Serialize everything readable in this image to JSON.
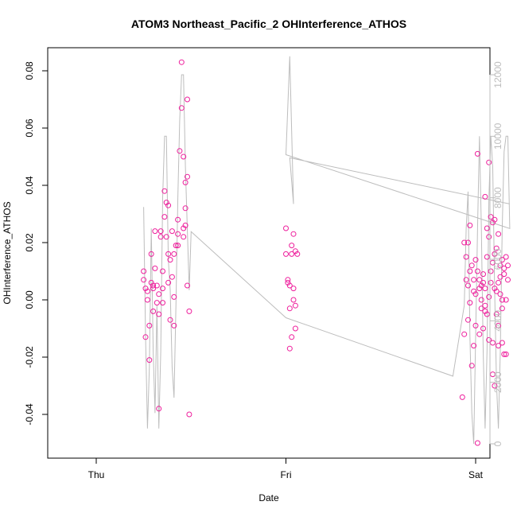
{
  "chart_data": {
    "type": "scatter",
    "title": "ATOM3 Northeast_Pacific_2 OHInterference_ATHOS",
    "xlabel": "Date",
    "ylabel": "OHInterference_ATHOS",
    "x_ticks": [
      "Thu",
      "Fri",
      "Sat"
    ],
    "y_ticks": [
      "-0.04",
      "-0.02",
      "0.00",
      "0.02",
      "0.04",
      "0.06",
      "0.08"
    ],
    "y_ticks_right": [
      "0",
      "2000",
      "4000",
      "6000",
      "8000",
      "10000",
      "12000"
    ],
    "ylim": [
      -0.05,
      0.085
    ],
    "ylim_right": [
      0,
      12500
    ],
    "grid": false,
    "colors": {
      "points": "#ee1e9c",
      "altitude": "#bdbdbd",
      "axis": "#000000",
      "right_axis": "#bdbdbd"
    },
    "series": [
      {
        "axis": "left",
        "style": "points",
        "points": [
          [
            0.25,
            0.01
          ],
          [
            0.25,
            0.007
          ],
          [
            0.26,
            0.004
          ],
          [
            0.26,
            -0.013
          ],
          [
            0.27,
            0.003
          ],
          [
            0.27,
            0.0
          ],
          [
            0.28,
            -0.009
          ],
          [
            0.28,
            -0.021
          ],
          [
            0.29,
            0.006
          ],
          [
            0.29,
            0.016
          ],
          [
            0.3,
            0.004
          ],
          [
            0.3,
            -0.004
          ],
          [
            0.31,
            0.024
          ],
          [
            0.31,
            0.011
          ],
          [
            0.32,
            0.005
          ],
          [
            0.32,
            -0.001
          ],
          [
            0.33,
            -0.038
          ],
          [
            0.33,
            0.002
          ],
          [
            0.34,
            0.022
          ],
          [
            0.34,
            0.024
          ],
          [
            0.35,
            0.004
          ],
          [
            0.35,
            -0.001
          ],
          [
            0.36,
            0.029
          ],
          [
            0.36,
            0.038
          ],
          [
            0.37,
            0.034
          ],
          [
            0.37,
            0.022
          ],
          [
            0.38,
            0.016
          ],
          [
            0.38,
            0.006
          ],
          [
            0.39,
            0.014
          ],
          [
            0.39,
            -0.007
          ],
          [
            0.4,
            0.024
          ],
          [
            0.4,
            0.008
          ],
          [
            0.41,
            0.001
          ],
          [
            0.41,
            -0.009
          ],
          [
            0.42,
            0.019
          ],
          [
            0.43,
            0.023
          ],
          [
            0.43,
            0.028
          ],
          [
            0.44,
            0.052
          ],
          [
            0.45,
            0.067
          ],
          [
            0.45,
            0.083
          ],
          [
            0.46,
            0.025
          ],
          [
            0.46,
            0.05
          ],
          [
            0.47,
            0.032
          ],
          [
            0.47,
            0.041
          ],
          [
            0.48,
            0.043
          ],
          [
            0.48,
            0.07
          ],
          [
            0.49,
            -0.004
          ],
          [
            0.49,
            -0.04
          ],
          [
            0.46,
            0.022
          ],
          [
            0.43,
            0.019
          ],
          [
            0.41,
            0.016
          ],
          [
            0.38,
            0.033
          ],
          [
            0.35,
            0.01
          ],
          [
            0.3,
            0.005
          ],
          [
            0.33,
            -0.005
          ],
          [
            0.47,
            0.026
          ],
          [
            0.48,
            0.005
          ],
          [
            1.0,
            0.025
          ],
          [
            1.0,
            0.016
          ],
          [
            1.01,
            0.007
          ],
          [
            1.01,
            0.006
          ],
          [
            1.02,
            -0.003
          ],
          [
            1.02,
            0.005
          ],
          [
            1.02,
            -0.017
          ],
          [
            1.03,
            0.019
          ],
          [
            1.03,
            -0.013
          ],
          [
            1.03,
            0.016
          ],
          [
            1.04,
            0.023
          ],
          [
            1.04,
            0.0
          ],
          [
            1.04,
            0.004
          ],
          [
            1.05,
            0.017
          ],
          [
            1.05,
            -0.002
          ],
          [
            1.05,
            -0.01
          ],
          [
            1.06,
            0.016
          ],
          [
            1.93,
            -0.034
          ],
          [
            1.94,
            -0.012
          ],
          [
            1.94,
            0.02
          ],
          [
            1.95,
            0.007
          ],
          [
            1.95,
            0.015
          ],
          [
            1.96,
            0.02
          ],
          [
            1.96,
            -0.007
          ],
          [
            1.97,
            0.026
          ],
          [
            1.97,
            0.01
          ],
          [
            1.98,
            -0.023
          ],
          [
            1.98,
            0.012
          ],
          [
            1.99,
            0.003
          ],
          [
            1.99,
            0.007
          ],
          [
            2.0,
            -0.009
          ],
          [
            2.0,
            0.014
          ],
          [
            2.01,
            -0.05
          ],
          [
            2.01,
            0.051
          ],
          [
            2.02,
            0.007
          ],
          [
            2.02,
            -0.012
          ],
          [
            2.03,
            0.0
          ],
          [
            2.03,
            -0.003
          ],
          [
            2.04,
            0.006
          ],
          [
            2.04,
            -0.01
          ],
          [
            2.05,
            0.036
          ],
          [
            2.05,
            0.004
          ],
          [
            2.06,
            0.025
          ],
          [
            2.06,
            0.015
          ],
          [
            2.07,
            0.048
          ],
          [
            2.07,
            -0.014
          ],
          [
            2.08,
            0.029
          ],
          [
            2.08,
            0.01
          ],
          [
            2.09,
            -0.015
          ],
          [
            2.09,
            -0.026
          ],
          [
            2.1,
            0.016
          ],
          [
            2.1,
            0.004
          ],
          [
            2.11,
            0.018
          ],
          [
            2.11,
            -0.005
          ],
          [
            2.12,
            0.023
          ],
          [
            2.12,
            -0.016
          ],
          [
            2.13,
            0.012
          ],
          [
            2.13,
            0.002
          ],
          [
            2.14,
            0.014
          ],
          [
            2.14,
            0.0
          ],
          [
            2.15,
            -0.019
          ],
          [
            2.15,
            0.009
          ],
          [
            2.16,
            0.015
          ],
          [
            2.16,
            -0.019
          ],
          [
            2.17,
            0.012
          ],
          [
            2.17,
            0.007
          ],
          [
            1.96,
            0.005
          ],
          [
            1.99,
            -0.016
          ],
          [
            2.02,
            0.004
          ],
          [
            2.05,
            -0.002
          ],
          [
            2.08,
            0.006
          ],
          [
            2.11,
            0.003
          ],
          [
            2.14,
            -0.003
          ],
          [
            2.0,
            0.002
          ],
          [
            2.03,
            0.005
          ],
          [
            2.06,
            -0.005
          ],
          [
            2.09,
            0.027
          ],
          [
            2.12,
            -0.009
          ],
          [
            2.15,
            0.011
          ],
          [
            1.97,
            -0.001
          ],
          [
            2.04,
            0.009
          ],
          [
            2.07,
            0.001
          ],
          [
            2.1,
            -0.03
          ],
          [
            2.13,
            0.008
          ],
          [
            2.16,
            0.0
          ],
          [
            2.01,
            0.01
          ],
          [
            2.05,
            -0.004
          ],
          [
            2.09,
            0.013
          ],
          [
            2.12,
            0.006
          ],
          [
            2.07,
            0.022
          ],
          [
            2.1,
            0.028
          ],
          [
            2.14,
            -0.015
          ]
        ]
      },
      {
        "axis": "right",
        "style": "line",
        "points": [
          [
            0.25,
            7700
          ],
          [
            0.26,
            3500
          ],
          [
            0.27,
            500
          ],
          [
            0.28,
            2500
          ],
          [
            0.29,
            7000
          ],
          [
            0.3,
            3000
          ],
          [
            0.31,
            1000
          ],
          [
            0.32,
            4500
          ],
          [
            0.33,
            500
          ],
          [
            0.34,
            3000
          ],
          [
            0.35,
            8000
          ],
          [
            0.36,
            10000
          ],
          [
            0.37,
            10000
          ],
          [
            0.38,
            6000
          ],
          [
            0.39,
            5000
          ],
          [
            0.4,
            2500
          ],
          [
            0.41,
            1500
          ],
          [
            0.42,
            4500
          ],
          [
            0.43,
            8000
          ],
          [
            0.44,
            10500
          ],
          [
            0.45,
            12000
          ],
          [
            0.46,
            12000
          ],
          [
            0.47,
            9000
          ],
          [
            0.49,
            5000
          ],
          [
            0.5,
            6900
          ],
          [
            1.0,
            4100
          ],
          [
            1.88,
            2200
          ],
          [
            1.94,
            4500
          ],
          [
            1.95,
            7000
          ],
          [
            1.96,
            8200
          ],
          [
            1.97,
            3500
          ],
          [
            1.98,
            1000
          ],
          [
            1.99,
            0
          ],
          [
            2.0,
            3500
          ],
          [
            2.01,
            7000
          ],
          [
            2.02,
            10000
          ],
          [
            2.03,
            7000
          ],
          [
            2.04,
            3000
          ],
          [
            2.05,
            500
          ],
          [
            2.06,
            3000
          ],
          [
            2.07,
            8000
          ],
          [
            2.08,
            10000
          ],
          [
            2.09,
            9000
          ],
          [
            2.1,
            5000
          ],
          [
            2.11,
            2000
          ],
          [
            2.12,
            500
          ],
          [
            2.13,
            3000
          ],
          [
            2.14,
            7000
          ],
          [
            2.15,
            9500
          ],
          [
            2.16,
            10000
          ],
          [
            2.17,
            10000
          ],
          [
            2.18,
            7000
          ],
          [
            1.0,
            9400
          ],
          [
            1.02,
            12600
          ],
          [
            1.04,
            7800
          ],
          [
            1.02,
            9300
          ],
          [
            2.18,
            7800
          ]
        ]
      }
    ]
  }
}
